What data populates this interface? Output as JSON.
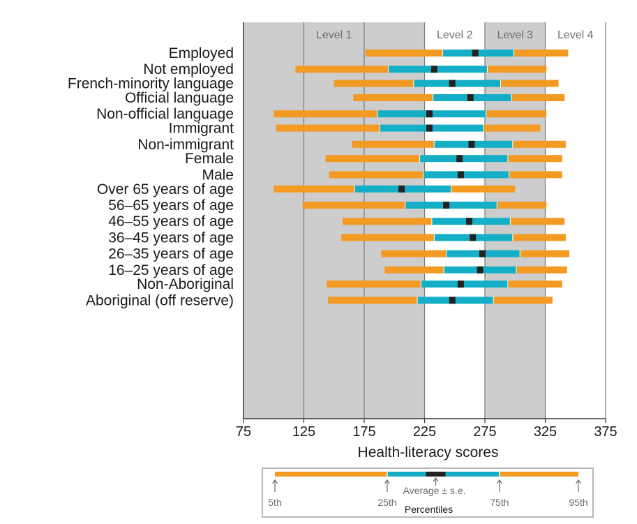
{
  "chart_data": {
    "type": "bar",
    "subtype": "percentile-range",
    "title": "",
    "xlabel": "Health-literacy scores",
    "ylabel": "",
    "xlim": [
      75,
      375
    ],
    "xticks": [
      75,
      125,
      175,
      225,
      275,
      325,
      375
    ],
    "grid": true,
    "level_bands": [
      {
        "label": "Level 1",
        "from": 75,
        "to": 225,
        "color": "#cdcdcd"
      },
      {
        "label": "Level 2",
        "from": 225,
        "to": 275,
        "color": "#ffffff"
      },
      {
        "label": "Level 3",
        "from": 275,
        "to": 325,
        "color": "#cdcdcd"
      },
      {
        "label": "Level 4",
        "from": 325,
        "to": 375,
        "color": "#ffffff"
      }
    ],
    "colors": {
      "outer": "#f39a23",
      "inner": "#14afc6",
      "mean": "#222222"
    },
    "groups": [
      {
        "categories": [
          {
            "label": "Employed",
            "p5": 176,
            "p25": 240,
            "mean": 267,
            "p75": 299,
            "p95": 344
          },
          {
            "label": "Not employed",
            "p5": 118,
            "p25": 195,
            "mean": 233,
            "p75": 277,
            "p95": 326
          }
        ]
      },
      {
        "categories": [
          {
            "label": "French-minority language",
            "p5": 150,
            "p25": 216,
            "mean": 248,
            "p75": 288,
            "p95": 336
          }
        ]
      },
      {
        "categories": [
          {
            "label": "Official language",
            "p5": 166,
            "p25": 232,
            "mean": 263,
            "p75": 297,
            "p95": 341
          },
          {
            "label": "Non-official language",
            "p5": 100,
            "p25": 186,
            "mean": 229,
            "p75": 276,
            "p95": 326
          }
        ]
      },
      {
        "categories": [
          {
            "label": "Immigrant",
            "p5": 102,
            "p25": 188,
            "mean": 229,
            "p75": 274,
            "p95": 321
          },
          {
            "label": "Non-immigrant",
            "p5": 165,
            "p25": 233,
            "mean": 264,
            "p75": 298,
            "p95": 342
          }
        ]
      },
      {
        "categories": [
          {
            "label": "Female",
            "p5": 143,
            "p25": 221,
            "mean": 254,
            "p75": 294,
            "p95": 339
          },
          {
            "label": "Male",
            "p5": 146,
            "p25": 224,
            "mean": 255,
            "p75": 295,
            "p95": 339
          }
        ]
      },
      {
        "categories": [
          {
            "label": "Over 65 years of age",
            "p5": 100,
            "p25": 167,
            "mean": 206,
            "p75": 247,
            "p95": 300
          },
          {
            "label": "56–65 years of age",
            "p5": 124,
            "p25": 209,
            "mean": 243,
            "p75": 285,
            "p95": 326
          },
          {
            "label": "46–55 years of age",
            "p5": 157,
            "p25": 231,
            "mean": 262,
            "p75": 296,
            "p95": 341
          },
          {
            "label": "36–45 years of age",
            "p5": 156,
            "p25": 233,
            "mean": 265,
            "p75": 298,
            "p95": 342
          },
          {
            "label": "26–35 years of age",
            "p5": 189,
            "p25": 243,
            "mean": 273,
            "p75": 304,
            "p95": 345
          },
          {
            "label": "16–25 years of age",
            "p5": 192,
            "p25": 241,
            "mean": 271,
            "p75": 301,
            "p95": 343
          }
        ]
      },
      {
        "categories": [
          {
            "label": "Non-Aboriginal",
            "p5": 144,
            "p25": 222,
            "mean": 255,
            "p75": 294,
            "p95": 339
          },
          {
            "label": "Aboriginal (off reserve)",
            "p5": 145,
            "p25": 219,
            "mean": 248,
            "p75": 282,
            "p95": 331
          }
        ]
      }
    ],
    "legend": {
      "title": "Percentiles",
      "labels": [
        "5th",
        "25th",
        "75th",
        "95th"
      ],
      "mean_label": "Average ± s.e.",
      "example": {
        "p5": 0,
        "p25": 0.37,
        "mean": 0.53,
        "p75": 0.74,
        "p95": 1
      }
    }
  }
}
